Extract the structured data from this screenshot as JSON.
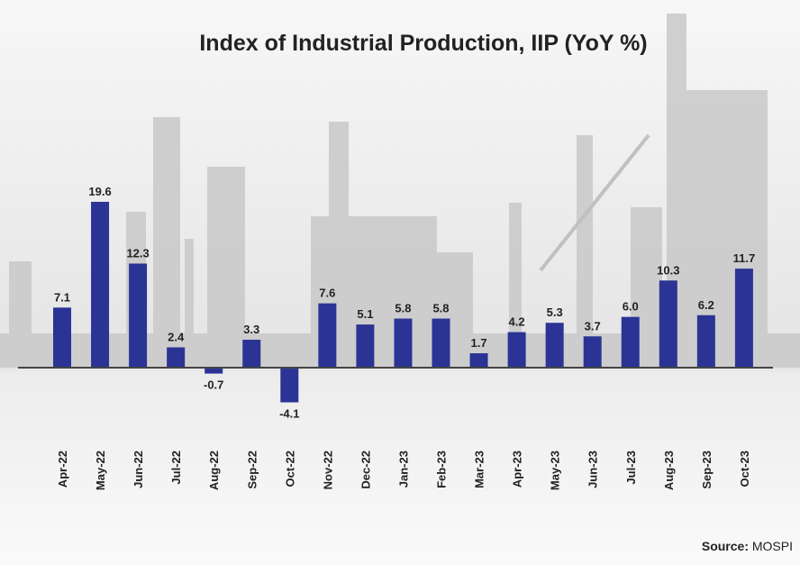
{
  "chart_data": {
    "type": "bar",
    "title": "Index of Industrial Production, IIP (YoY %)",
    "categories": [
      "Apr-22",
      "May-22",
      "Jun-22",
      "Jul-22",
      "Aug-22",
      "Sep-22",
      "Oct-22",
      "Nov-22",
      "Dec-22",
      "Jan-23",
      "Feb-23",
      "Mar-23",
      "Apr-23",
      "May-23",
      "Jun-23",
      "Jul-23",
      "Aug-23",
      "Sep-23",
      "Oct-23"
    ],
    "values": [
      7.1,
      19.6,
      12.3,
      2.4,
      -0.7,
      3.3,
      -4.1,
      7.6,
      5.1,
      5.8,
      5.8,
      1.7,
      4.2,
      5.3,
      3.7,
      6.0,
      10.3,
      6.2,
      11.7
    ],
    "xlabel": "",
    "ylabel": "",
    "data_labels": true,
    "grid": false,
    "bar_color": "#2b3494"
  },
  "source": {
    "label": "Source:",
    "value": "MOSPI"
  }
}
